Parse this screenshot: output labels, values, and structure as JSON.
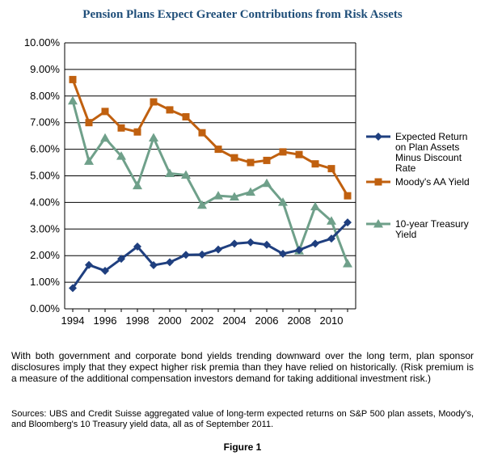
{
  "chart_data": {
    "type": "line",
    "title": "Pension Plans Expect Greater Contributions from Risk Assets",
    "x": [
      1994,
      1995,
      1996,
      1997,
      1998,
      1999,
      2000,
      2001,
      2002,
      2003,
      2004,
      2005,
      2006,
      2007,
      2008,
      2009,
      2010,
      2011
    ],
    "x_tick_labels": [
      "1994",
      "1996",
      "1998",
      "2000",
      "2002",
      "2004",
      "2006",
      "2008",
      "2010"
    ],
    "x_ticks": [
      1994,
      1996,
      1998,
      2000,
      2002,
      2004,
      2006,
      2008,
      2010
    ],
    "y_tick_labels": [
      "0.00%",
      "1.00%",
      "2.00%",
      "3.00%",
      "4.00%",
      "5.00%",
      "6.00%",
      "7.00%",
      "8.00%",
      "9.00%",
      "10.00%"
    ],
    "ylim": [
      0,
      10
    ],
    "grid": "horizontal",
    "legend_position": "right",
    "series": [
      {
        "name": "Expected Return on Plan Assets Minus Discount Rate",
        "legend_lines": [
          "Expected Return",
          "on Plan Assets",
          "Minus Discount",
          "Rate"
        ],
        "color": "#1f3f7f",
        "marker": "diamond",
        "values": [
          0.78,
          1.65,
          1.43,
          1.88,
          2.34,
          1.64,
          1.75,
          2.03,
          2.04,
          2.23,
          2.45,
          2.5,
          2.41,
          2.07,
          2.21,
          2.45,
          2.64,
          3.25
        ]
      },
      {
        "name": "Moody's AA Yield",
        "legend_lines": [
          "Moody's AA Yield"
        ],
        "color": "#c0600f",
        "marker": "square",
        "values": [
          8.62,
          7.0,
          7.42,
          6.8,
          6.65,
          7.78,
          7.48,
          7.22,
          6.62,
          6.0,
          5.68,
          5.5,
          5.58,
          5.9,
          5.8,
          5.45,
          5.27,
          4.25
        ]
      },
      {
        "name": "10-year Treasury Yield",
        "legend_lines": [
          "10-year Treasury",
          "Yield"
        ],
        "color": "#6fa08a",
        "marker": "triangle",
        "values": [
          7.82,
          5.55,
          6.42,
          5.74,
          4.63,
          6.43,
          5.09,
          5.03,
          3.9,
          4.25,
          4.21,
          4.39,
          4.72,
          4.01,
          2.18,
          3.84,
          3.3,
          1.7
        ]
      }
    ]
  },
  "caption": "With both government and corporate bond yields trending downward over the long term, plan sponsor disclosures imply that they expect higher risk premia than they have relied on historically. (Risk premium is a measure of the additional compensation investors demand for taking additional investment risk.)",
  "sources": "Sources: UBS and Credit Suisse aggregated value of long-term expected returns on S&P 500 plan assets, Moody's, and Bloomberg's 10 Treasury yield data, all as of September 2011.",
  "figure_label": "Figure 1"
}
